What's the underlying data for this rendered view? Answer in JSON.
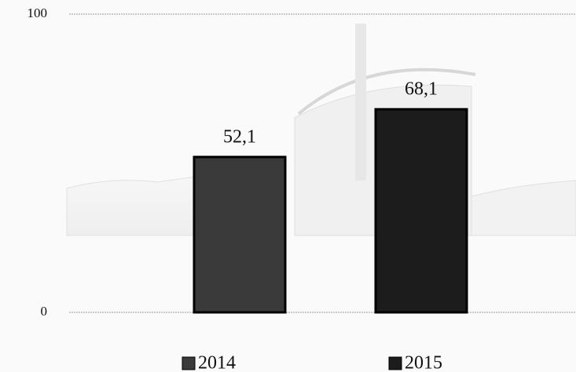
{
  "chart_data": {
    "type": "bar",
    "categories": [
      null
    ],
    "series": [
      {
        "name": "2014",
        "color": "#3a3a3a",
        "values": [
          52.1
        ],
        "value_labels": [
          "52,1"
        ]
      },
      {
        "name": "2015",
        "color": "#1c1c1c",
        "values": [
          68.1
        ],
        "value_labels": [
          "68,1"
        ]
      }
    ],
    "ylim": [
      0,
      100
    ],
    "yticks": [
      0,
      100
    ],
    "grid": true
  }
}
